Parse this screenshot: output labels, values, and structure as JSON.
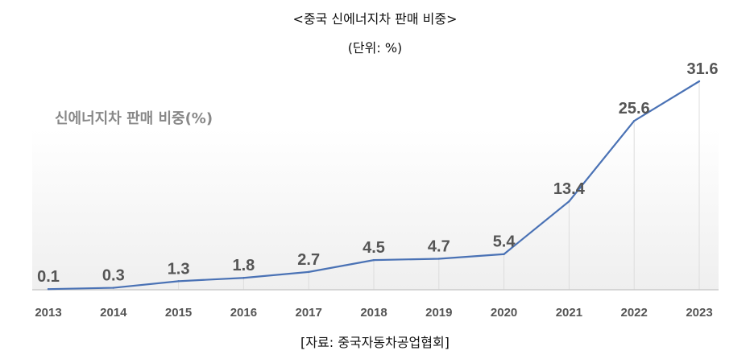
{
  "title": "<중국 신에너지차 판매 비중>",
  "unit": "(단위: %)",
  "source": "[자료: 중국자동차공업협회]",
  "chart_data": {
    "type": "line",
    "title": "신에너지차 판매 비중(%)",
    "categories": [
      "2013",
      "2014",
      "2015",
      "2016",
      "2017",
      "2018",
      "2019",
      "2020",
      "2021",
      "2022",
      "2023"
    ],
    "series": [
      {
        "values": [
          0.1,
          0.3,
          1.3,
          1.8,
          2.7,
          4.5,
          4.7,
          5.4,
          13.4,
          25.6,
          31.6
        ]
      }
    ],
    "data_labels": [
      "0.1",
      "0.3",
      "1.3",
      "1.8",
      "2.7",
      "4.5",
      "4.7",
      "5.4",
      "13.4",
      "25.6",
      "31.6"
    ],
    "ylim": [
      0,
      31.6
    ],
    "grid": "vertical",
    "colors": {
      "line": "#4a72b5",
      "label": "#555555",
      "grid": "#dddddd"
    }
  }
}
